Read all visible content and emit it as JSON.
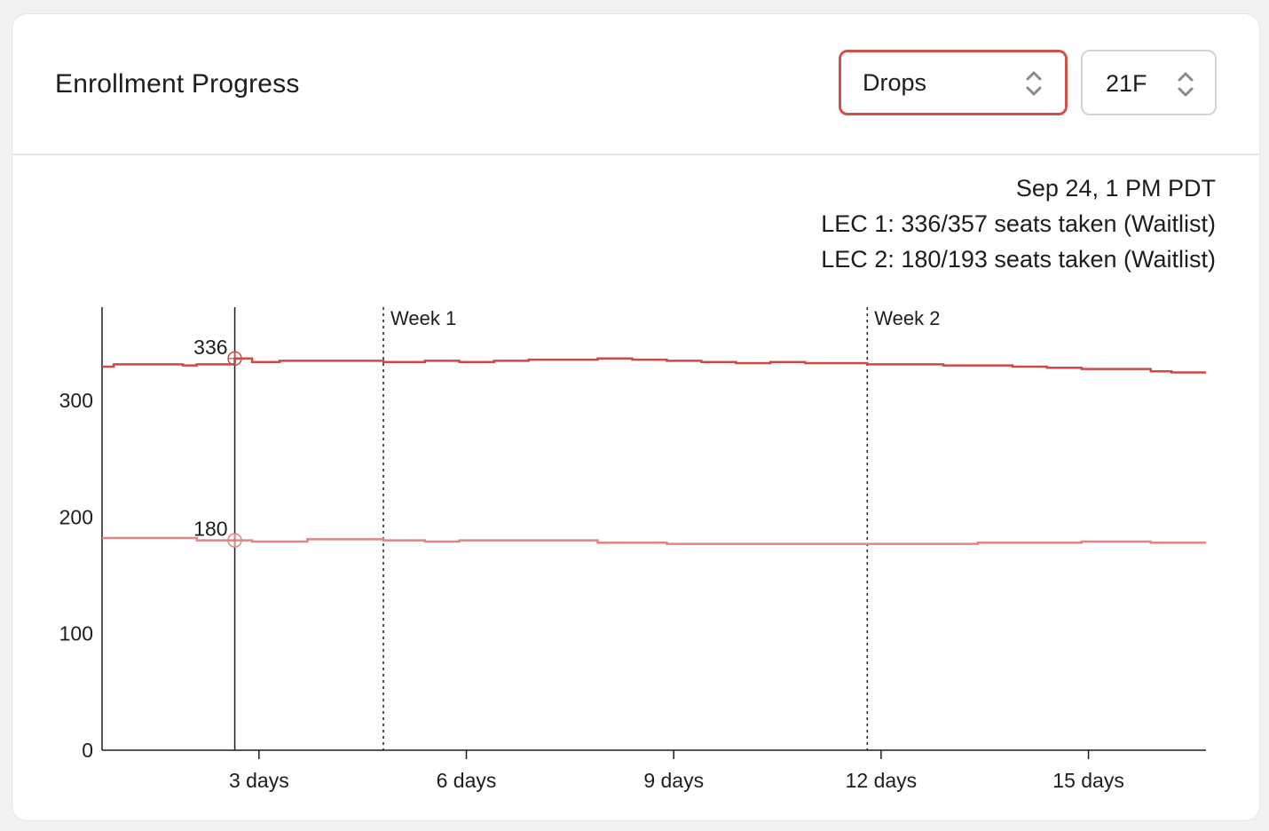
{
  "header": {
    "title": "Enrollment Progress",
    "metric_select": {
      "value": "Drops"
    },
    "term_select": {
      "value": "21F"
    }
  },
  "info": {
    "timestamp": "Sep 24, 1 PM PDT",
    "lines": [
      "LEC 1: 336/357 seats taken (Waitlist)",
      "LEC 2: 180/193 seats taken (Waitlist)"
    ]
  },
  "colors": {
    "accent": "#d0504a",
    "lec1": "#cc4a44",
    "lec2": "#e08580",
    "axis": "#1d1d1f"
  },
  "chart_data": {
    "type": "line",
    "x_unit": "days",
    "xlim": [
      0.73,
      16.7
    ],
    "ylim": [
      0,
      380
    ],
    "y_ticks": [
      0,
      100,
      200,
      300
    ],
    "y_tick_labels": [
      "0",
      "100",
      "200",
      "300"
    ],
    "x_ticks": [
      3,
      6,
      9,
      12,
      15
    ],
    "x_tick_labels": [
      "3 days",
      "6 days",
      "9 days",
      "12 days",
      "15 days"
    ],
    "markers": [
      {
        "x": 4.8,
        "label": "Week 1"
      },
      {
        "x": 11.8,
        "label": "Week 2"
      }
    ],
    "cursor": {
      "x": 2.65,
      "points": [
        {
          "series": 0,
          "y": 336,
          "label": "336"
        },
        {
          "series": 1,
          "y": 180,
          "label": "180"
        }
      ]
    },
    "series": [
      {
        "x": [
          0.73,
          0.9,
          1.2,
          1.5,
          1.9,
          2.1,
          2.4,
          2.65,
          2.9,
          3.3,
          3.7,
          4.2,
          4.8,
          5.4,
          5.9,
          6.4,
          6.9,
          7.4,
          7.9,
          8.4,
          8.9,
          9.4,
          9.9,
          10.4,
          10.9,
          11.4,
          11.8,
          12.4,
          12.9,
          13.4,
          13.9,
          14.4,
          14.9,
          15.4,
          15.9,
          16.2,
          16.7
        ],
        "y": [
          329,
          331,
          331,
          331,
          330,
          331,
          331,
          336,
          333,
          334,
          334,
          334,
          333,
          334,
          333,
          334,
          335,
          335,
          336,
          335,
          334,
          333,
          332,
          333,
          332,
          332,
          331,
          331,
          330,
          330,
          329,
          328,
          327,
          327,
          325,
          324,
          324
        ]
      },
      {
        "x": [
          0.73,
          1.2,
          1.8,
          2.1,
          2.4,
          2.65,
          2.9,
          3.3,
          3.7,
          4.2,
          4.8,
          5.4,
          5.9,
          6.4,
          6.9,
          7.4,
          7.9,
          8.4,
          8.9,
          9.4,
          9.9,
          10.4,
          10.9,
          11.4,
          11.8,
          12.4,
          12.9,
          13.4,
          13.9,
          14.4,
          14.9,
          15.4,
          15.9,
          16.2,
          16.7
        ],
        "y": [
          182,
          182,
          182,
          180,
          180,
          180,
          179,
          179,
          181,
          181,
          180,
          179,
          180,
          180,
          180,
          180,
          178,
          178,
          177,
          177,
          177,
          177,
          177,
          177,
          177,
          177,
          177,
          178,
          178,
          178,
          179,
          179,
          178,
          178,
          178
        ]
      }
    ]
  }
}
